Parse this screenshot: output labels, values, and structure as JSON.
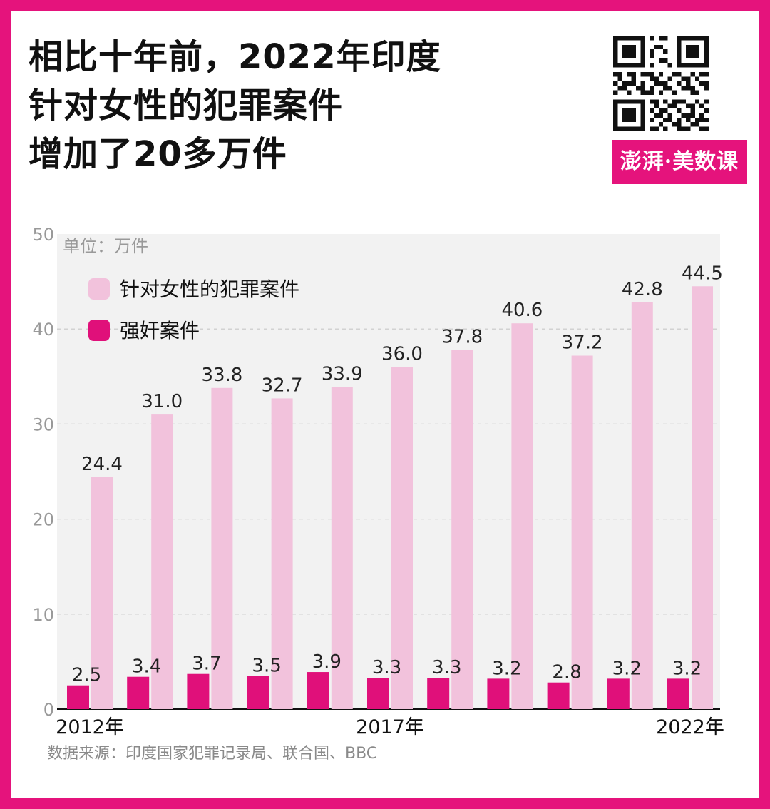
{
  "header": {
    "title_lines": [
      "相比十年前，2022年印度",
      "针对女性的犯罪案件",
      "增加了20多万件"
    ]
  },
  "brand": {
    "label": "澎湃·美数课"
  },
  "source": "数据来源：印度国家犯罪记录局、联合国、BBC",
  "colors": {
    "frame": "#e5137c",
    "series_total": "#f2c2dc",
    "series_rape": "#e0107a",
    "plot_bg": "#f2f2f2"
  },
  "icons": {
    "qr": "qr-code-icon"
  },
  "chart_data": {
    "type": "bar",
    "unit_label": "单位：万件",
    "categories": [
      "2012",
      "2013",
      "2014",
      "2015",
      "2016",
      "2017",
      "2018",
      "2019",
      "2020",
      "2021",
      "2022"
    ],
    "x_tick_labels": [
      "2012年",
      "",
      "",
      "",
      "",
      "2017年",
      "",
      "",
      "",
      "",
      "2022年"
    ],
    "series": [
      {
        "name": "针对女性的犯罪案件",
        "values": [
          24.4,
          31.0,
          33.8,
          32.7,
          33.9,
          36.0,
          37.8,
          40.6,
          37.2,
          42.8,
          44.5
        ]
      },
      {
        "name": "强奸案件",
        "values": [
          2.5,
          3.4,
          3.7,
          3.5,
          3.9,
          3.3,
          3.3,
          3.2,
          2.8,
          3.2,
          3.2
        ]
      }
    ],
    "ylim": [
      0,
      50
    ],
    "yticks": [
      0,
      10,
      20,
      30,
      40,
      50
    ],
    "grid": true,
    "legend_position": "top-left"
  }
}
